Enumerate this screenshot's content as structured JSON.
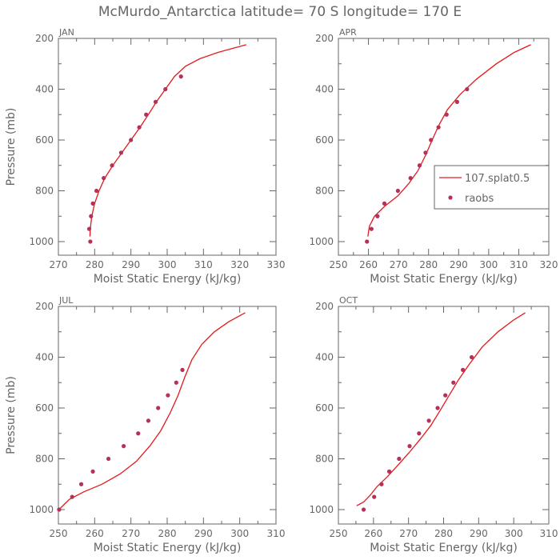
{
  "title": "McMurdo_Antarctica   latitude= 70 S longitude= 170 E",
  "legend": {
    "model": "107.splat0.5",
    "obs": "raobs"
  },
  "colors": {
    "model": "#e31a1c",
    "obs": "#b5305a",
    "axis": "#666666"
  },
  "chart_data": [
    {
      "type": "line",
      "panel": "JAN",
      "xlabel": "Moist Static Energy (kJ/kg)",
      "ylabel": "Pressure (mb)",
      "xlim": [
        270,
        330
      ],
      "ylim": [
        1000,
        200
      ],
      "xticks": [
        270,
        280,
        290,
        300,
        310,
        320,
        330
      ],
      "yticks": [
        200,
        400,
        600,
        800,
        1000
      ],
      "series": [
        {
          "name": "107.splat0.5",
          "kind": "line",
          "x": [
            278.7,
            278.8,
            279.2,
            280.0,
            281.2,
            282.8,
            285.0,
            287.5,
            290.0,
            292.5,
            294.8,
            297.0,
            298.5,
            300.0,
            302.0,
            305.0,
            309.0,
            314.0,
            321.8
          ],
          "y": [
            980,
            950,
            900,
            850,
            800,
            750,
            700,
            650,
            600,
            550,
            500,
            450,
            420,
            390,
            350,
            310,
            280,
            255,
            225
          ]
        },
        {
          "name": "raobs",
          "kind": "scatter",
          "x": [
            278.8,
            278.5,
            279.0,
            279.5,
            280.5,
            282.5,
            284.8,
            287.3,
            290.0,
            292.3,
            294.2,
            296.8,
            299.5,
            303.8
          ],
          "y": [
            1000,
            950,
            900,
            850,
            800,
            750,
            700,
            650,
            600,
            550,
            500,
            450,
            400,
            350
          ]
        }
      ]
    },
    {
      "type": "line",
      "panel": "APR",
      "xlabel": "Moist Static Energy (kJ/kg)",
      "ylabel": "Pressure (mb)",
      "xlim": [
        250,
        320
      ],
      "ylim": [
        1000,
        200
      ],
      "xticks": [
        250,
        260,
        270,
        280,
        290,
        300,
        310,
        320
      ],
      "yticks": [
        200,
        400,
        600,
        800,
        1000
      ],
      "legend_position": "right",
      "series": [
        {
          "name": "107.splat0.5",
          "kind": "line",
          "x": [
            259.8,
            260.3,
            262.0,
            265.5,
            269.8,
            273.5,
            276.5,
            279.0,
            281.2,
            283.5,
            286.3,
            290.5,
            296.0,
            302.5,
            308.5,
            314.0
          ],
          "y": [
            980,
            940,
            900,
            860,
            820,
            770,
            720,
            660,
            600,
            540,
            480,
            420,
            360,
            300,
            255,
            225
          ]
        },
        {
          "name": "raobs",
          "kind": "scatter",
          "x": [
            259.5,
            261.0,
            263.0,
            265.3,
            269.8,
            274.0,
            277.0,
            279.0,
            280.8,
            283.3,
            286.0,
            289.5,
            292.8
          ],
          "y": [
            1000,
            950,
            900,
            850,
            800,
            750,
            700,
            650,
            600,
            550,
            500,
            450,
            400
          ]
        }
      ]
    },
    {
      "type": "line",
      "panel": "JUL",
      "xlabel": "Moist Static Energy (kJ/kg)",
      "ylabel": "Pressure (mb)",
      "xlim": [
        250,
        310
      ],
      "ylim": [
        1000,
        200
      ],
      "xticks": [
        250,
        260,
        270,
        280,
        290,
        300,
        310
      ],
      "yticks": [
        200,
        400,
        600,
        800,
        1000
      ],
      "series": [
        {
          "name": "107.splat0.5",
          "kind": "line",
          "x": [
            250.5,
            253.0,
            257.0,
            262.0,
            267.0,
            271.5,
            275.2,
            278.2,
            280.8,
            283.0,
            284.8,
            286.8,
            289.5,
            293.0,
            297.0,
            301.5
          ],
          "y": [
            995,
            960,
            930,
            900,
            860,
            810,
            750,
            690,
            620,
            550,
            480,
            410,
            350,
            300,
            260,
            225
          ]
        },
        {
          "name": "raobs",
          "kind": "scatter",
          "x": [
            250.2,
            253.8,
            256.3,
            259.5,
            263.8,
            268.0,
            272.0,
            274.8,
            277.5,
            280.2,
            282.5,
            284.2
          ],
          "y": [
            1000,
            950,
            900,
            850,
            800,
            750,
            700,
            650,
            600,
            550,
            500,
            450
          ]
        }
      ]
    },
    {
      "type": "line",
      "panel": "OCT",
      "xlabel": "Moist Static Energy (kJ/kg)",
      "ylabel": "Pressure (mb)",
      "xlim": [
        250,
        310
      ],
      "ylim": [
        1000,
        200
      ],
      "xticks": [
        250,
        260,
        270,
        280,
        290,
        300,
        310
      ],
      "yticks": [
        200,
        400,
        600,
        800,
        1000
      ],
      "series": [
        {
          "name": "107.splat0.5",
          "kind": "line",
          "x": [
            255.2,
            257.2,
            259.0,
            261.0,
            264.0,
            267.3,
            270.5,
            273.5,
            276.3,
            279.0,
            281.6,
            284.2,
            287.2,
            291.0,
            295.5,
            299.8,
            303.3
          ],
          "y": [
            985,
            970,
            945,
            910,
            870,
            820,
            770,
            720,
            670,
            610,
            550,
            490,
            430,
            360,
            300,
            255,
            225
          ]
        },
        {
          "name": "raobs",
          "kind": "scatter",
          "x": [
            257.2,
            260.2,
            262.3,
            264.5,
            267.3,
            270.3,
            273.0,
            275.8,
            278.3,
            280.5,
            282.8,
            285.5,
            288.0
          ],
          "y": [
            1000,
            950,
            900,
            850,
            800,
            750,
            700,
            650,
            600,
            550,
            500,
            450,
            400
          ]
        }
      ]
    }
  ]
}
